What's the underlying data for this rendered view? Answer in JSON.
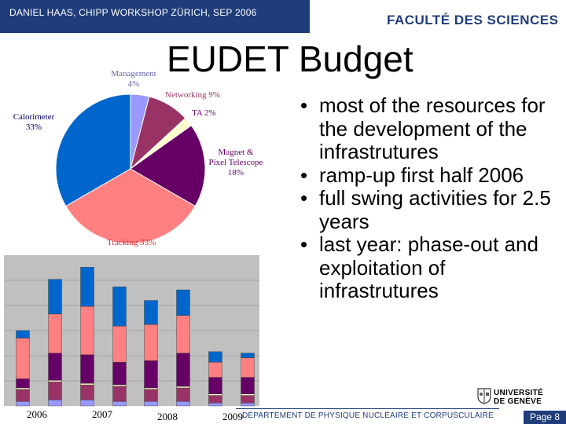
{
  "header": {
    "event": "DANIEL HAAS, CHIPP WORKSHOP ZÜRICH, SEP 2006",
    "faculty": "FACULTÉ DES SCIENCES"
  },
  "title": "EUDET Budget",
  "colors": {
    "header_bg": "#1f3d7a",
    "management": "#9999ff",
    "networking": "#993366",
    "ta": "#ffffcc",
    "magnet": "#660066",
    "tracking": "#ff8080",
    "calorimeter": "#0066cc"
  },
  "chart_data": [
    {
      "type": "pie",
      "title": "",
      "slices": [
        {
          "name": "Management",
          "label_name": "Management",
          "label_value": "4%",
          "value": 4,
          "color": "#9999ff"
        },
        {
          "name": "Networking",
          "label": "Networking 9%",
          "value": 9,
          "color": "#993366"
        },
        {
          "name": "TA",
          "label": "TA 2%",
          "value": 2,
          "color": "#ffffcc"
        },
        {
          "name": "Magnet & Pixel Telescope",
          "label_lines": [
            "Magnet &",
            "Pixel Telescope",
            "18%"
          ],
          "value": 18,
          "color": "#660066"
        },
        {
          "name": "Tracking",
          "label": "Tracking 33%",
          "value": 33,
          "color": "#ff8080"
        },
        {
          "name": "Calorimeter",
          "label_lines": [
            "Calorimeter",
            "33%"
          ],
          "value": 33,
          "color": "#0066cc"
        }
      ]
    },
    {
      "type": "bar",
      "stacked": true,
      "title": "",
      "xlabel": "",
      "ylabel": "",
      "year_labels": [
        "2006",
        "2007",
        "2008",
        "2009"
      ],
      "y_range": [
        0,
        10
      ],
      "series_order": [
        "Management",
        "Networking",
        "TA",
        "Magnet & Pixel Telescope",
        "Tracking",
        "Calorimeter"
      ],
      "bars": [
        {
          "stack": [
            0.3,
            0.8,
            0.1,
            0.6,
            2.7,
            0.5
          ]
        },
        {
          "stack": [
            0.4,
            1.2,
            0.1,
            1.8,
            2.6,
            2.3
          ]
        },
        {
          "stack": [
            0.4,
            1.0,
            0.1,
            1.9,
            3.2,
            2.6
          ]
        },
        {
          "stack": [
            0.3,
            1.0,
            0.1,
            1.5,
            2.4,
            2.6
          ]
        },
        {
          "stack": [
            0.3,
            0.8,
            0.1,
            1.8,
            2.4,
            1.6
          ]
        },
        {
          "stack": [
            0.3,
            0.9,
            0.1,
            2.2,
            2.5,
            1.7
          ]
        },
        {
          "stack": [
            0.2,
            0.5,
            0.1,
            1.1,
            1.0,
            0.7
          ]
        },
        {
          "stack": [
            0.2,
            0.5,
            0.1,
            1.1,
            1.3,
            0.3
          ]
        }
      ]
    }
  ],
  "bullets": [
    "most of the resources for the development of the infrastrutures",
    "ramp-up first half 2006",
    "full swing activities for 2.5 years",
    "last year: phase-out and exploitation of infrastrutures"
  ],
  "bullet_glyph": "•",
  "logo": {
    "line1": "UNIVERSITÉ",
    "line2": "DE GENÈVE"
  },
  "footer": {
    "department": "DÉPARTEMENT DE PHYSIQUE NUCLÉAIRE ET CORPUSCULAIRE",
    "page": "Page 8"
  }
}
